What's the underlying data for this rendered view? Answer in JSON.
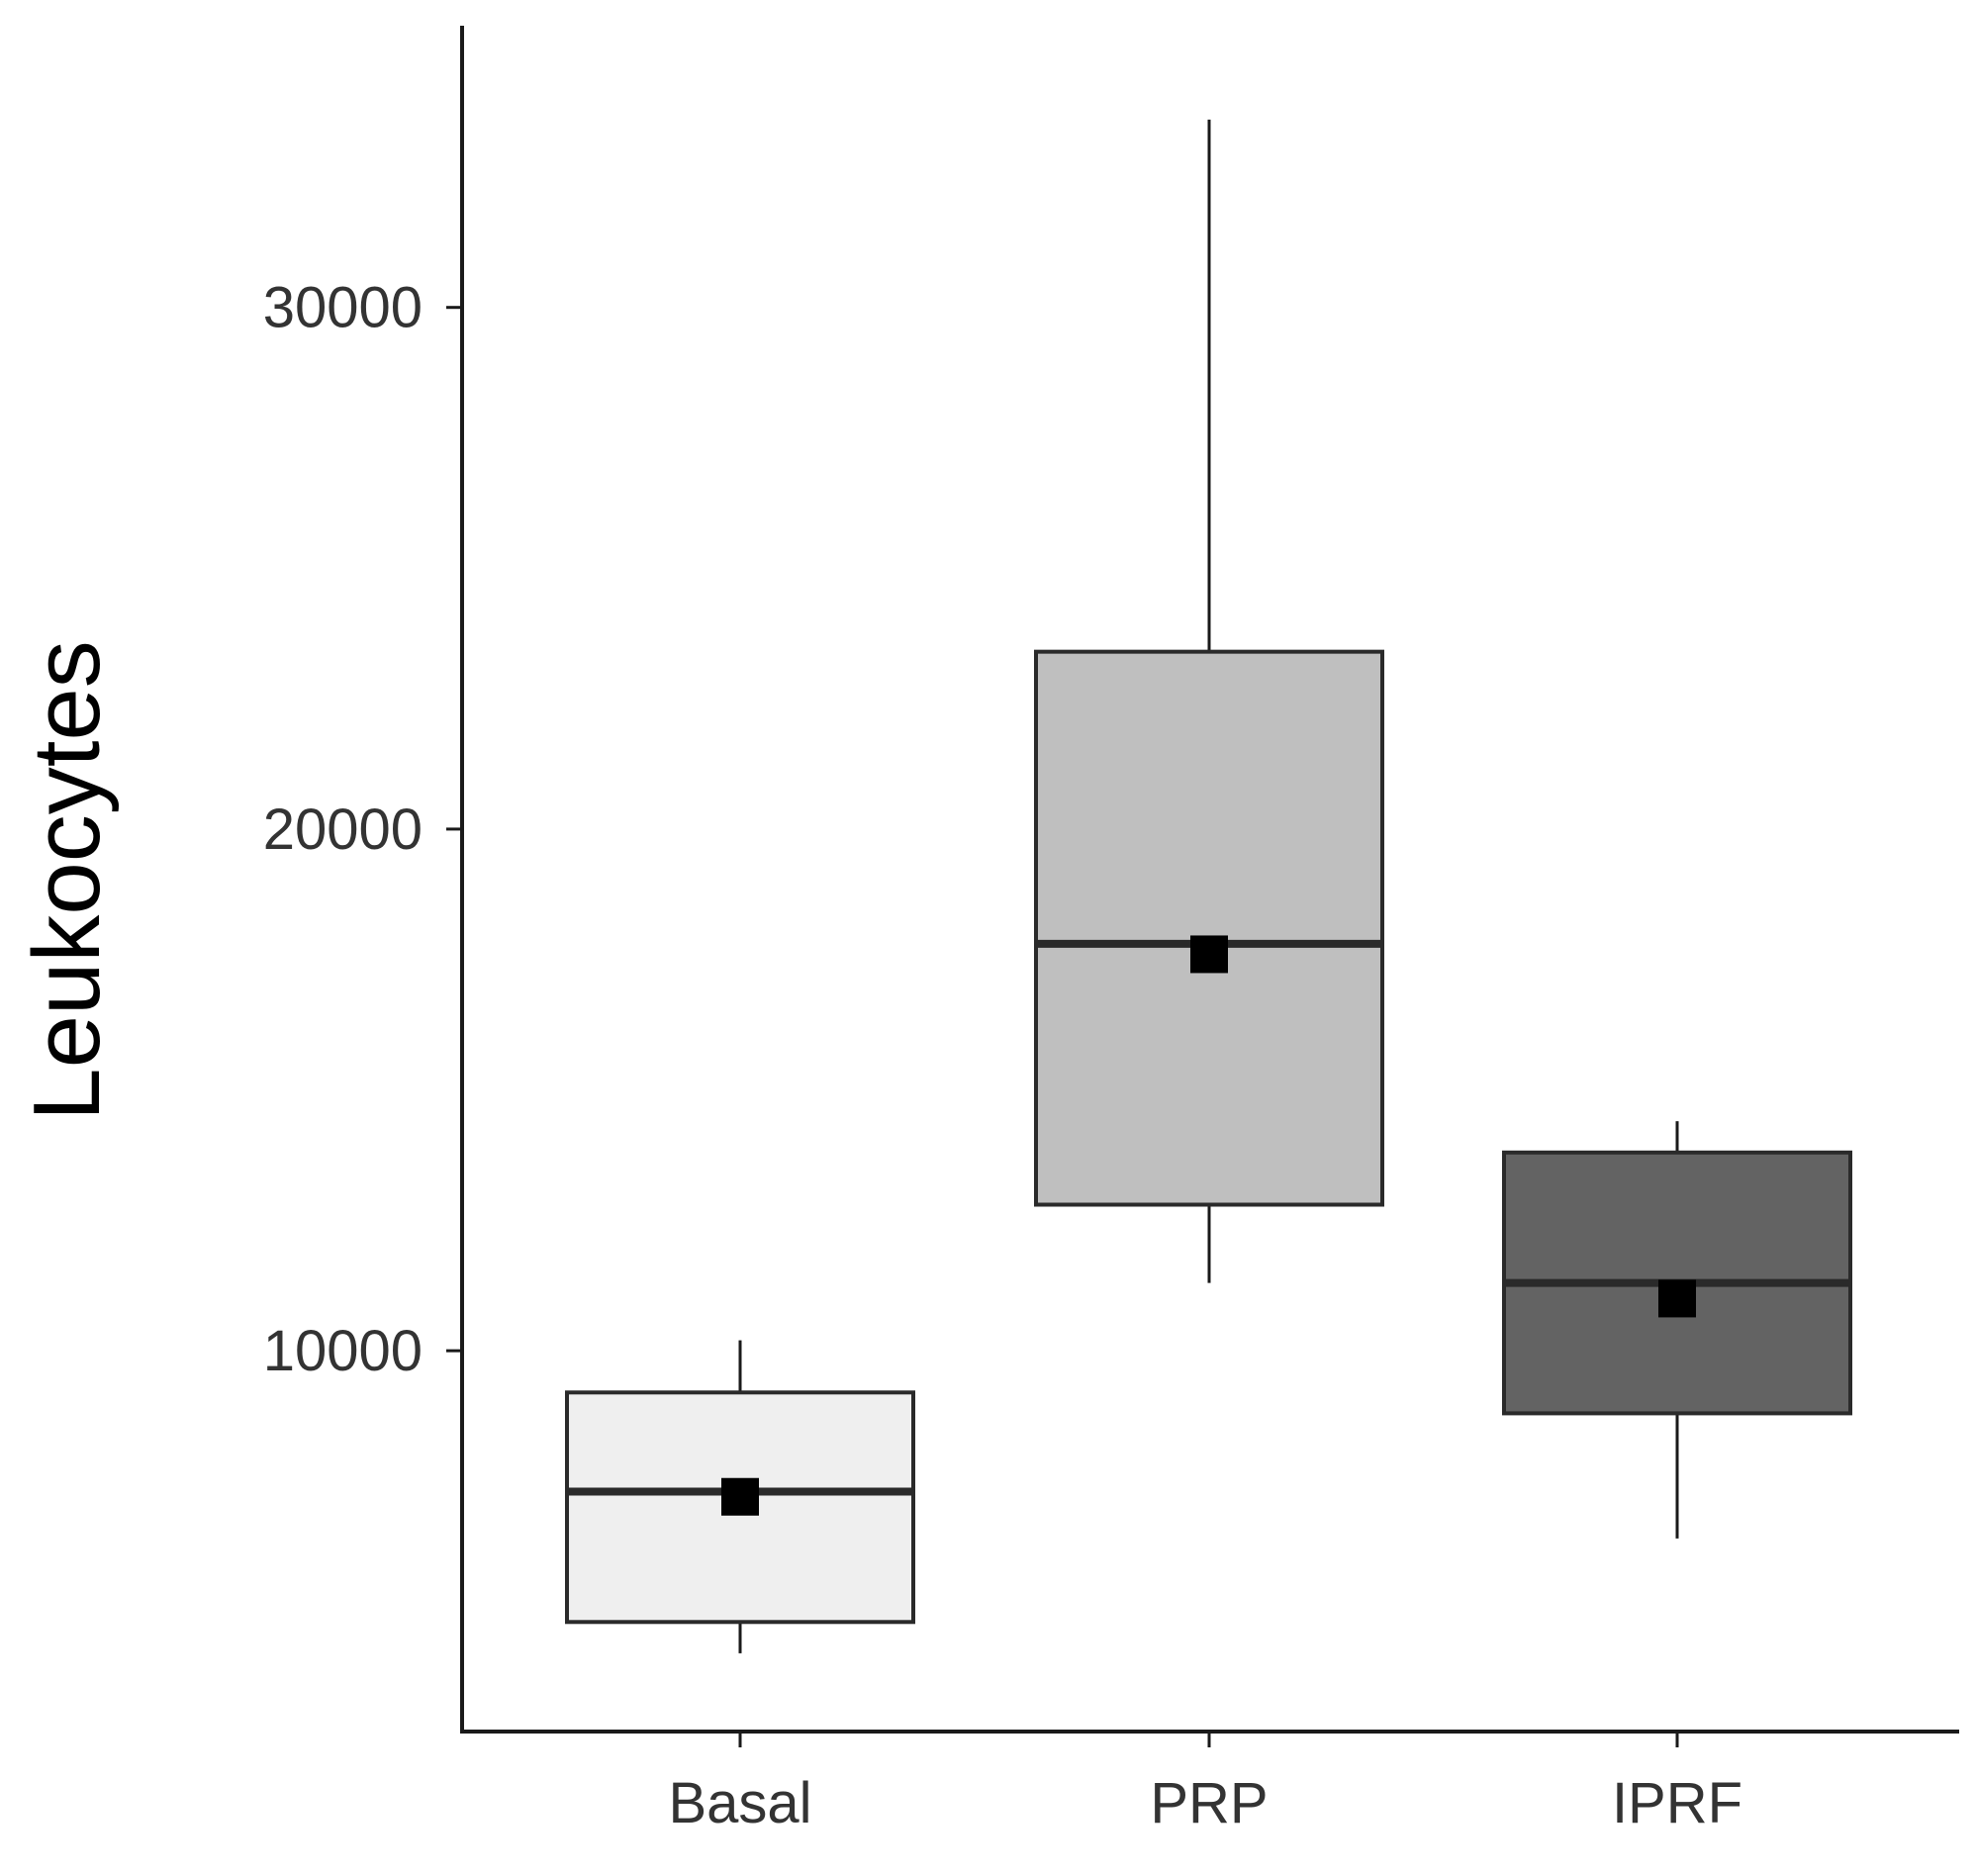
{
  "chart_data": {
    "type": "box",
    "title": "",
    "xlabel": "",
    "ylabel": "Leukocytes",
    "categories": [
      "Basal",
      "PRP",
      "IPRF"
    ],
    "yticks": [
      10000,
      20000,
      30000
    ],
    "ytick_labels": [
      "10000",
      "20000",
      "30000"
    ],
    "ylim": [
      2700,
      35400
    ],
    "grid": false,
    "legend": "none",
    "boxes": [
      {
        "category": "Basal",
        "whisker_low": 4200,
        "q1": 4800,
        "median": 7300,
        "mean": 7200,
        "q3": 9200,
        "whisker_high": 10200,
        "fill": "#efefef"
      },
      {
        "category": "PRP",
        "whisker_low": 11300,
        "q1": 12800,
        "median": 17800,
        "mean": 17600,
        "q3": 23400,
        "whisker_high": 33600,
        "fill": "#bfbfbf"
      },
      {
        "category": "IPRF",
        "whisker_low": 6400,
        "q1": 8800,
        "median": 11300,
        "mean": 11000,
        "q3": 13800,
        "whisker_high": 14400,
        "fill": "#636363"
      }
    ],
    "colors": {
      "axis": "#1a1a1a",
      "box_stroke": "#2a2a2a",
      "mean_marker": "#000000"
    }
  }
}
